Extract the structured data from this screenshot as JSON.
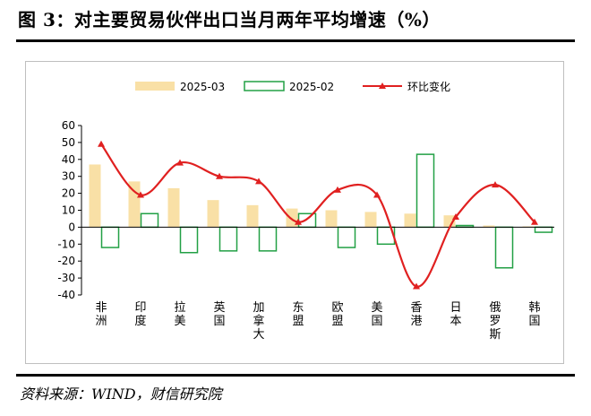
{
  "title": "图 3：对主要贸易伙伴出口当月两年平均增速（%）",
  "source": "资料来源：WIND，财信研究院",
  "colors": {
    "bar_2025_03": "#f9e0a6",
    "bar_2025_02": "#22a045",
    "line": "#e02020",
    "axis": "#000000"
  },
  "chart_data": {
    "type": "bar",
    "title": "对主要贸易伙伴出口当月两年平均增速（%）",
    "categories": [
      "非洲",
      "印度",
      "拉美",
      "英国",
      "加拿大",
      "东盟",
      "欧盟",
      "美国",
      "香港",
      "日本",
      "俄罗斯",
      "韩国"
    ],
    "series": [
      {
        "name": "2025-03",
        "kind": "bar",
        "values": [
          37,
          27,
          23,
          16,
          13,
          11,
          10,
          9,
          8,
          7,
          1,
          0.5
        ]
      },
      {
        "name": "2025-02",
        "kind": "bar",
        "values": [
          -12,
          8,
          -15,
          -14,
          -14,
          8,
          -12,
          -10,
          43,
          1,
          -24,
          -3
        ]
      },
      {
        "name": "环比变化",
        "kind": "line",
        "values": [
          49,
          19,
          38,
          30,
          27,
          3,
          22,
          19,
          -35,
          6,
          25,
          3
        ]
      }
    ],
    "ylim": [
      -40,
      60
    ],
    "yticks": [
      60,
      50,
      40,
      30,
      20,
      10,
      0,
      -10,
      -20,
      -30,
      -40
    ],
    "legend": "top-center",
    "grid": false
  }
}
